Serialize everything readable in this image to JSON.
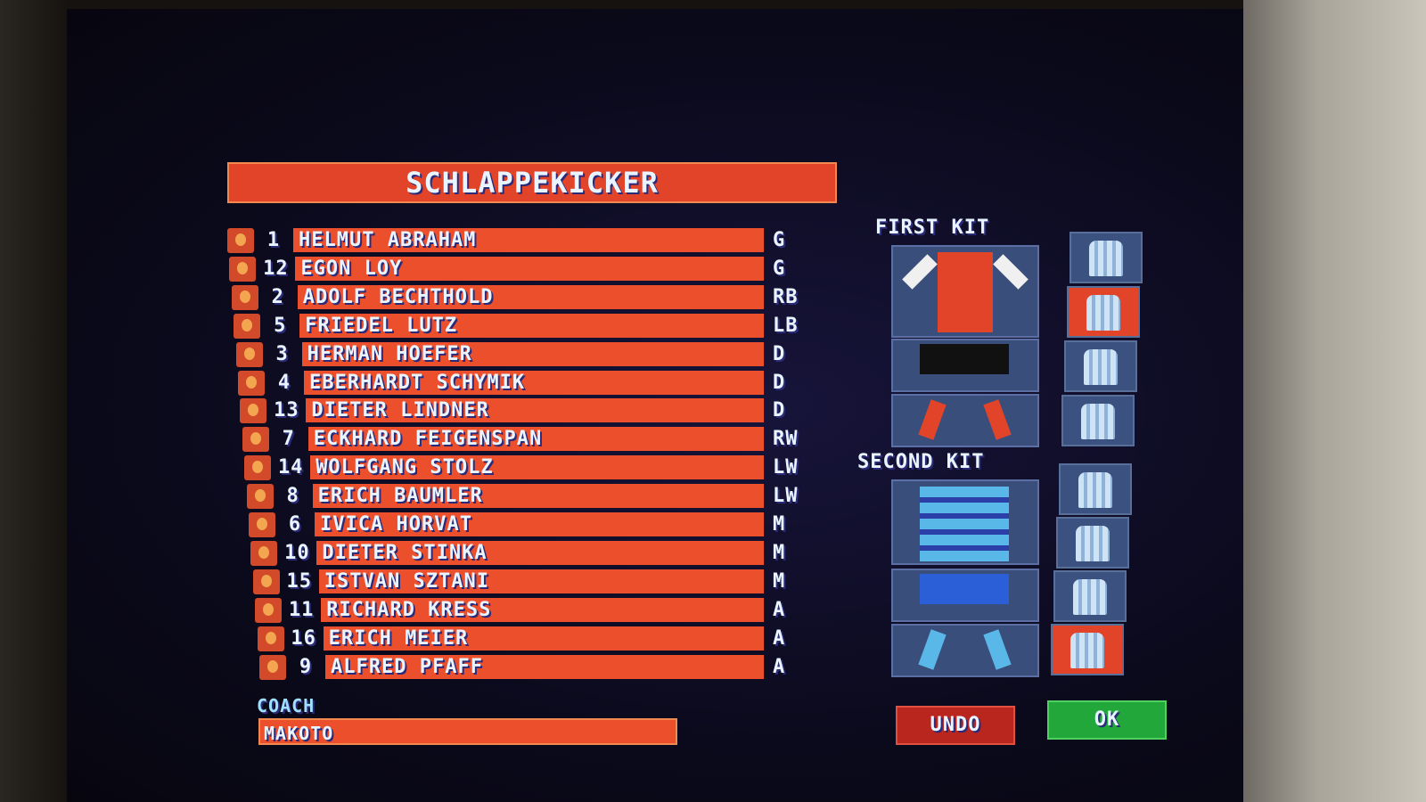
{
  "team_name": "SCHLAPPEKICKER",
  "players": [
    {
      "num": "1",
      "name": "HELMUT ABRAHAM",
      "pos": "G"
    },
    {
      "num": "12",
      "name": "EGON LOY",
      "pos": "G"
    },
    {
      "num": "2",
      "name": "ADOLF BECHTHOLD",
      "pos": "RB"
    },
    {
      "num": "5",
      "name": "FRIEDEL LUTZ",
      "pos": "LB"
    },
    {
      "num": "3",
      "name": "HERMAN HOEFER",
      "pos": "D"
    },
    {
      "num": "4",
      "name": "EBERHARDT SCHYMIK",
      "pos": "D"
    },
    {
      "num": "13",
      "name": "DIETER LINDNER",
      "pos": "D"
    },
    {
      "num": "7",
      "name": "ECKHARD FEIGENSPAN",
      "pos": "RW"
    },
    {
      "num": "14",
      "name": "WOLFGANG STOLZ",
      "pos": "LW"
    },
    {
      "num": "8",
      "name": "ERICH BAUMLER",
      "pos": "LW"
    },
    {
      "num": "6",
      "name": "IVICA HORVAT",
      "pos": "M"
    },
    {
      "num": "10",
      "name": "DIETER STINKA",
      "pos": "M"
    },
    {
      "num": "15",
      "name": "ISTVAN SZTANI",
      "pos": "M"
    },
    {
      "num": "11",
      "name": "RICHARD KRESS",
      "pos": "A"
    },
    {
      "num": "16",
      "name": "ERICH MEIER",
      "pos": "A"
    },
    {
      "num": "9",
      "name": "ALFRED PFAFF",
      "pos": "A"
    }
  ],
  "coach": {
    "label": "COACH",
    "name": "MAKOTO"
  },
  "kits": {
    "first": {
      "label": "FIRST KIT",
      "shirt": "#e2442a",
      "sleeves": "#f0f0f0",
      "shorts": "#111111",
      "socks": "#e2442a"
    },
    "second": {
      "label": "SECOND KIT",
      "shirt": "#5ab8e8",
      "stripes": "#2a3fa8",
      "shorts": "#2a5fd8",
      "socks": "#5ab8e8"
    },
    "first_selected_style": 2,
    "second_selected_style": 4
  },
  "buttons": {
    "undo": "UNDO",
    "ok": "OK"
  },
  "colors": {
    "bar": "#ec4f2c",
    "undo": "#b8261e",
    "ok": "#22a83a"
  }
}
